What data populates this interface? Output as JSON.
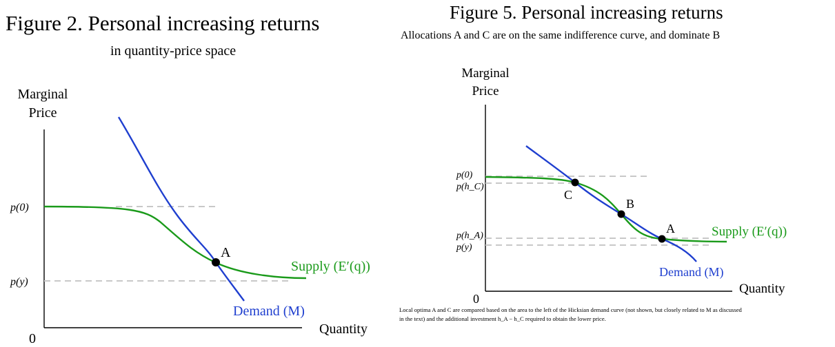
{
  "colors": {
    "supply": "#1a9a1a",
    "demand": "#1f3fcf",
    "axis": "#000000",
    "reference": "#c8c8c8",
    "point": "#000000"
  },
  "figure2": {
    "title": "Figure 2.  Personal increasing returns",
    "subtitle": "in quantity-price space",
    "y_axis_label_line1": "Marginal",
    "y_axis_label_line2": "Price",
    "x_axis_label": "Quantity",
    "origin_label": "0",
    "tick_p0": "p(0)",
    "tick_py": "p(y)",
    "point_a_label": "A",
    "supply_label": "Supply (E′(q))",
    "demand_label": "Demand (M)"
  },
  "figure5": {
    "title": "Figure 5.  Personal increasing returns",
    "subtitle": "Allocations A and C are on the same indifference curve, and dominate B",
    "y_axis_label_line1": "Marginal",
    "y_axis_label_line2": "Price",
    "x_axis_label": "Quantity",
    "origin_label": "0",
    "tick_p0": "p(0)",
    "tick_phc": "p(h_C)",
    "tick_pha": "p(h_A)",
    "tick_py": "p(y)",
    "point_a_label": "A",
    "point_b_label": "B",
    "point_c_label": "C",
    "supply_label": "Supply (E′(q))",
    "demand_label": "Demand (M)",
    "caption_line1": "Local optima A and C are compared based on the area to the left of the Hicksian demand curve (not shown, but closely related to M as discussed",
    "caption_line2": "in the text) and the additional investment h_A − h_C required to obtain the lower price."
  }
}
